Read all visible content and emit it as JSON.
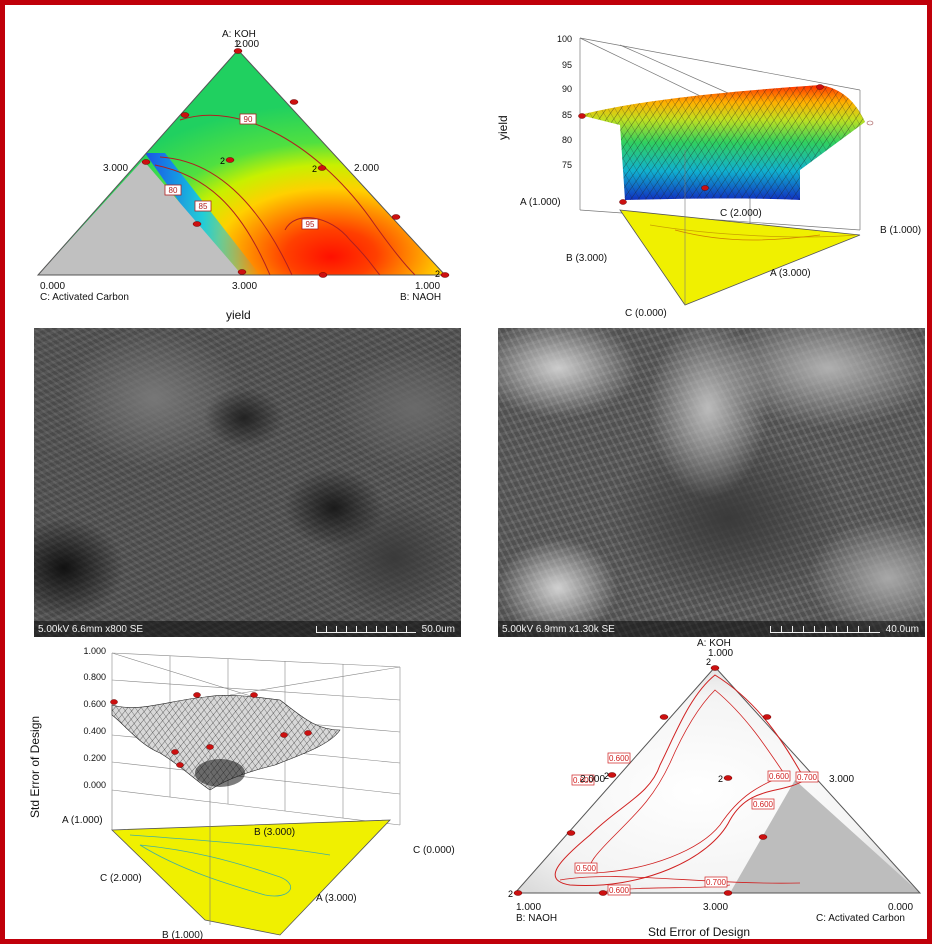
{
  "panels": {
    "ternary_yield": {
      "title": "yield",
      "vertex_top_name": "A: KOH",
      "vertex_top_value": "1.000",
      "vertex_left_value": "0.000",
      "vertex_left_name": "C: Activated Carbon",
      "vertex_right_value": "1.000",
      "vertex_right_name": "B: NAOH",
      "edge_left_value": "3.000",
      "edge_right_value": "2.000",
      "edge_bottom_value": "3.000",
      "design_point_count_labels": [
        "2",
        "2",
        "2",
        "2"
      ]
    },
    "surface_yield": {
      "z_label": "yield",
      "z_ticks": [
        "100",
        "95",
        "90",
        "85",
        "80",
        "75"
      ],
      "base_labels": {
        "a1": "A (1.000)",
        "c2": "C (2.000)",
        "b1": "B (1.000)",
        "b3": "B (3.000)",
        "a3": "A (3.000)",
        "c0": "C (0.000)"
      }
    },
    "sem_left": {
      "info": "5.00kV 6.6mm x800 SE",
      "scale": "50.0um"
    },
    "sem_right": {
      "info": "5.00kV 6.9mm x1.30k SE",
      "scale": "40.0um"
    },
    "surface_std_error": {
      "z_label": "Std Error of Design",
      "z_ticks": [
        "1.000",
        "0.800",
        "0.600",
        "0.400",
        "0.200",
        "0.000"
      ],
      "base_labels": {
        "a1": "A (1.000)",
        "b3": "B (3.000)",
        "c0": "C (0.000)",
        "c2": "C (2.000)",
        "a3": "A (3.000)",
        "b1": "B (1.000)"
      }
    },
    "ternary_std_error": {
      "title": "Std Error of Design",
      "vertex_top_name": "A: KOH",
      "vertex_top_value": "1.000",
      "vertex_left_value": "1.000",
      "vertex_left_name": "B: NAOH",
      "vertex_right_value": "0.000",
      "vertex_right_name": "C: Activated Carbon",
      "edge_left_value": "2.000",
      "edge_right_value": "3.000",
      "edge_bottom_value": "3.000",
      "design_point_count_labels": [
        "2",
        "2",
        "2",
        "2"
      ]
    }
  },
  "chart_data": [
    {
      "type": "heatmap",
      "subtype": "ternary-contour",
      "title": "yield",
      "components": [
        "A: KOH",
        "B: NAOH",
        "C: Activated Carbon"
      ],
      "contour_levels": [
        "80",
        "85",
        "90",
        "95"
      ],
      "colorscale": [
        "#1a3cff",
        "#00c0ff",
        "#30e040",
        "#c8f000",
        "#ffd000",
        "#ff6000",
        "#ff1000"
      ],
      "infeasible_region_color": "#c0c0c0"
    },
    {
      "type": "area",
      "subtype": "3d-surface",
      "zlabel": "yield",
      "zlim": [
        75,
        100
      ],
      "z_ticks": [
        75,
        80,
        85,
        90,
        95,
        100
      ]
    },
    {
      "type": "area",
      "subtype": "3d-surface",
      "zlabel": "Std Error of Design",
      "zlim": [
        0,
        1
      ],
      "z_ticks": [
        0,
        0.2,
        0.4,
        0.6,
        0.8,
        1.0
      ]
    },
    {
      "type": "heatmap",
      "subtype": "ternary-contour",
      "title": "Std Error of Design",
      "components": [
        "A: KOH",
        "B: NAOH",
        "C: Activated Carbon"
      ],
      "contour_levels": [
        "0.600",
        "0.600",
        "0.600",
        "0.700",
        "0.600",
        "0.500",
        "0.600",
        "0.700"
      ],
      "contour_color": "#d02020",
      "infeasible_region_color": "#bdbdbd"
    }
  ]
}
